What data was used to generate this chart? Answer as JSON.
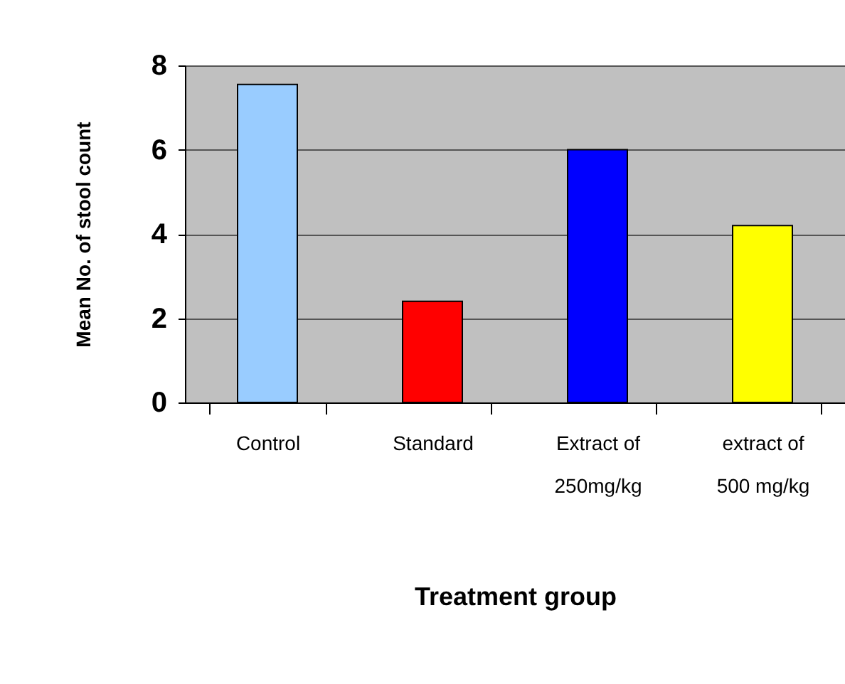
{
  "chart_data": {
    "type": "bar",
    "xlabel": "Treatment group",
    "ylabel": "Mean No. of stool count",
    "categories": [
      "Control",
      "Standard",
      "Extract of 250mg/kg",
      "extract of 500 mg/kg"
    ],
    "values": [
      7.55,
      2.4,
      6.0,
      4.2
    ],
    "colors": [
      "#99ccff",
      "#ff0000",
      "#0000ff",
      "#ffff00"
    ],
    "ylim": [
      0,
      8
    ],
    "yticks": [
      0,
      2,
      4,
      6,
      8
    ],
    "grid": "y"
  }
}
